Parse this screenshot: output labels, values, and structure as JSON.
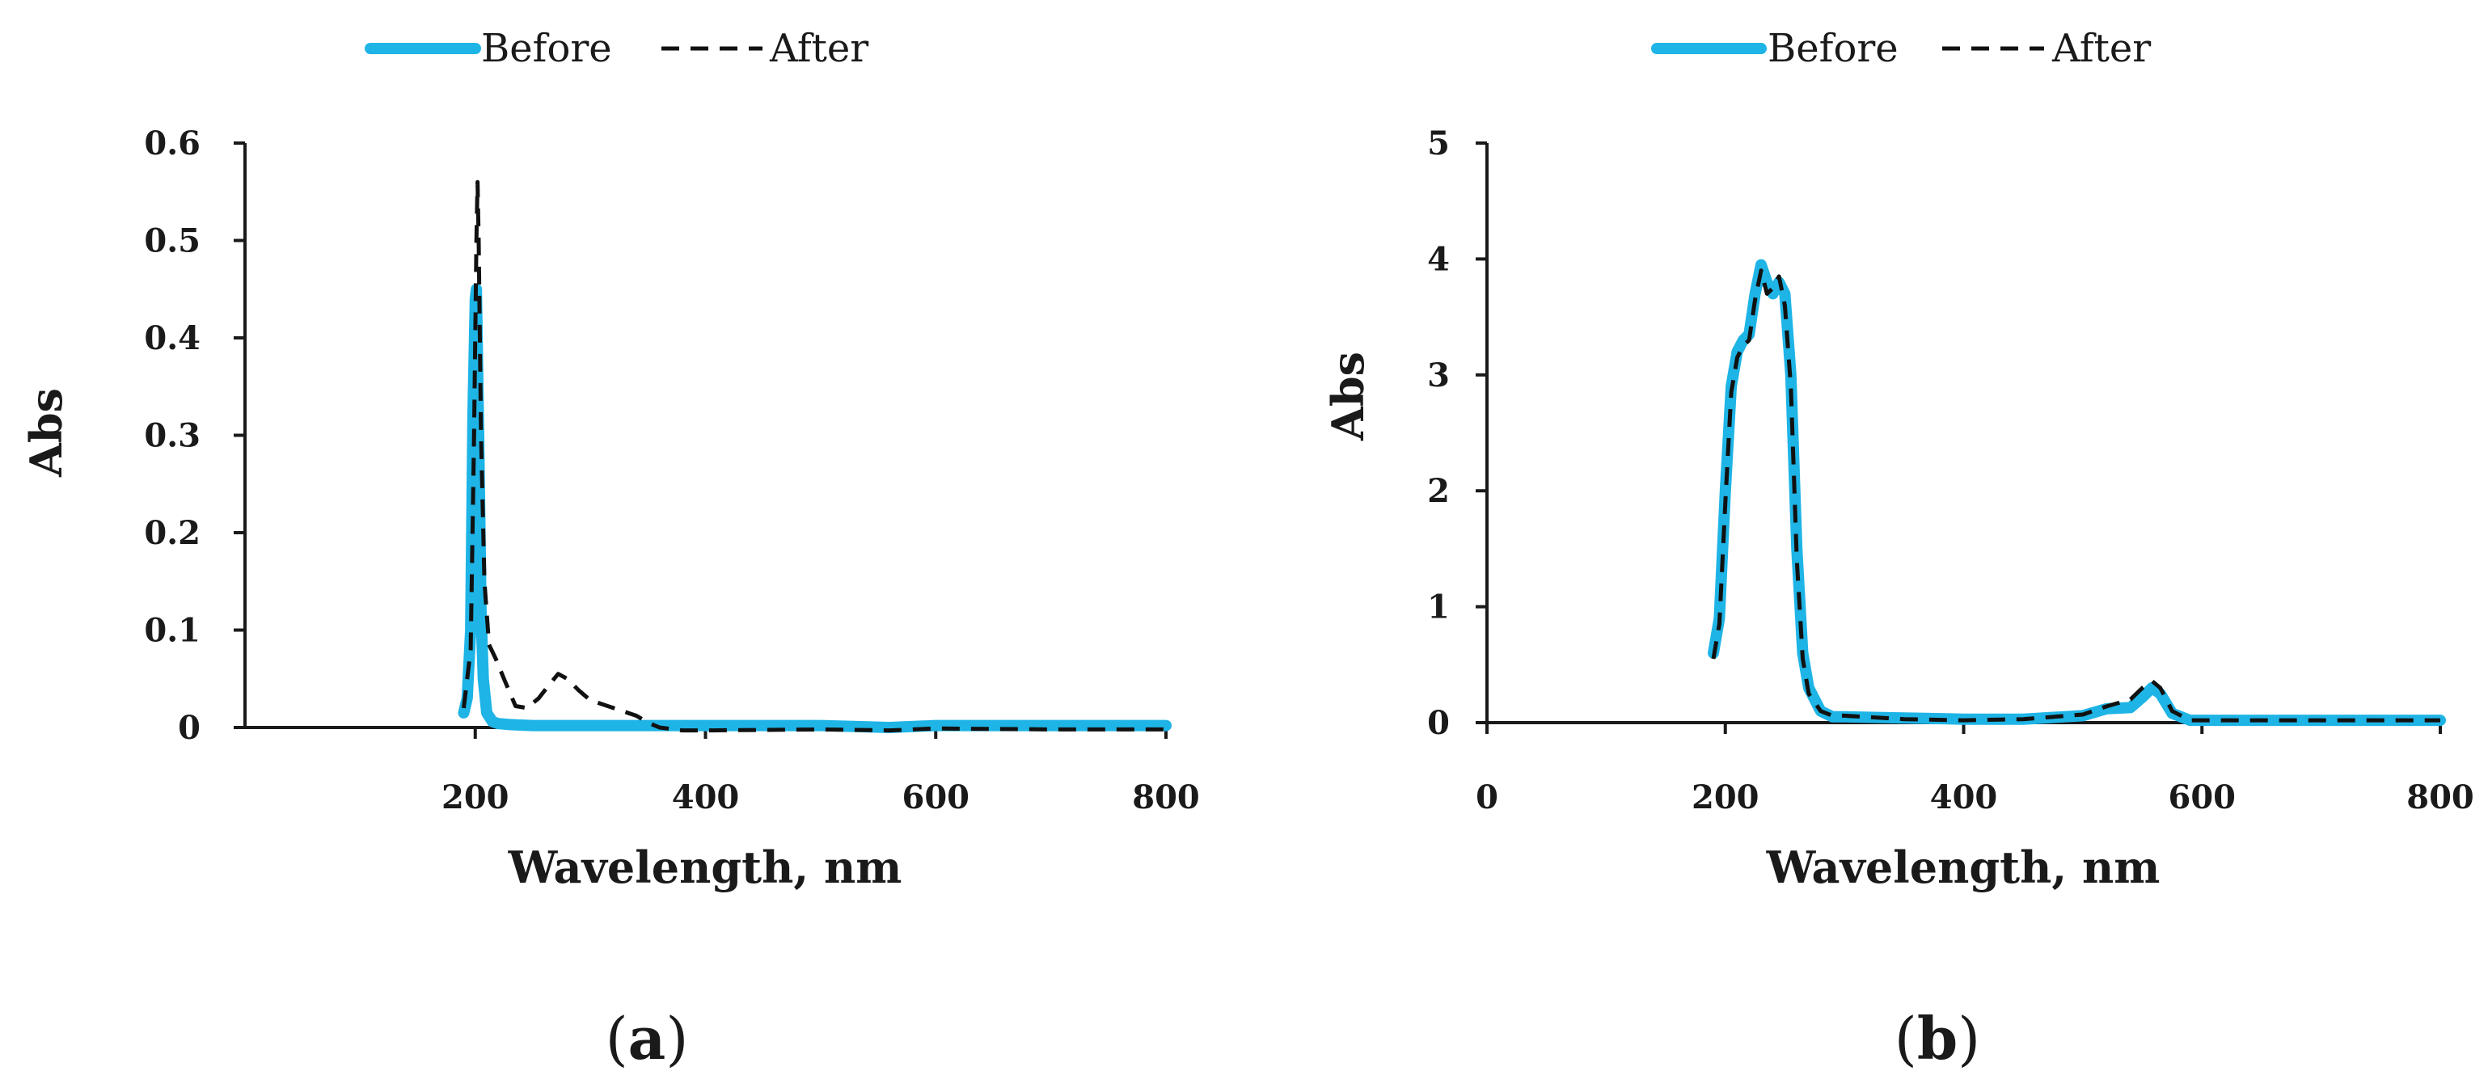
{
  "figure": {
    "panel_labels": [
      {
        "open": "(",
        "letter": "a",
        "close": ")"
      },
      {
        "open": "(",
        "letter": "b",
        "close": ")"
      }
    ]
  },
  "chart_data": [
    {
      "type": "line",
      "panel": "a",
      "title": "",
      "xlabel": "Wavelength, nm",
      "ylabel": "Abs",
      "xlim": [
        0,
        800
      ],
      "ylim": [
        0,
        0.6
      ],
      "xticks": [
        200,
        400,
        600,
        800
      ],
      "xtick_labels": [
        "200",
        "400",
        "600",
        "800"
      ],
      "yticks": [
        0,
        0.1,
        0.2,
        0.3,
        0.4,
        0.5,
        0.6
      ],
      "ytick_labels": [
        "0",
        "0.1",
        "0.2",
        "0.3",
        "0.4",
        "0.5",
        "0.6"
      ],
      "grid": false,
      "legend": "top-center",
      "series": [
        {
          "name": "Before",
          "color": "#1eb4e6",
          "style": "solid",
          "x": [
            190,
            193,
            196,
            198,
            200,
            201,
            203,
            205,
            207,
            210,
            215,
            220,
            230,
            250,
            300,
            400,
            500,
            560,
            600,
            700,
            800
          ],
          "y": [
            0.015,
            0.03,
            0.1,
            0.32,
            0.44,
            0.45,
            0.3,
            0.12,
            0.05,
            0.015,
            0.006,
            0.004,
            0.003,
            0.002,
            0.002,
            0.002,
            0.002,
            0.0,
            0.002,
            0.002,
            0.002
          ]
        },
        {
          "name": "After",
          "color": "#111111",
          "style": "dashed",
          "x": [
            190,
            196,
            199,
            201,
            202,
            203,
            205,
            208,
            212,
            218,
            225,
            235,
            245,
            255,
            265,
            272,
            280,
            290,
            300,
            320,
            340,
            350,
            360,
            380,
            400,
            500,
            560,
            600,
            700,
            800
          ],
          "y": [
            0.02,
            0.08,
            0.3,
            0.5,
            0.56,
            0.5,
            0.3,
            0.15,
            0.085,
            0.07,
            0.05,
            0.022,
            0.02,
            0.03,
            0.045,
            0.055,
            0.05,
            0.038,
            0.028,
            0.02,
            0.012,
            0.005,
            0.0,
            -0.003,
            -0.003,
            -0.002,
            -0.003,
            -0.001,
            -0.002,
            -0.002
          ]
        }
      ]
    },
    {
      "type": "line",
      "panel": "b",
      "title": "",
      "xlabel": "Wavelength, nm",
      "ylabel": "Abs",
      "xlim": [
        0,
        800
      ],
      "ylim": [
        0,
        5
      ],
      "xticks": [
        0,
        200,
        400,
        600,
        800
      ],
      "xtick_labels": [
        "0",
        "200",
        "400",
        "600",
        "800"
      ],
      "yticks": [
        0,
        1,
        2,
        3,
        4,
        5
      ],
      "ytick_labels": [
        "0",
        "1",
        "2",
        "3",
        "4",
        "5"
      ],
      "grid": false,
      "legend": "top-center",
      "series": [
        {
          "name": "Before",
          "color": "#1eb4e6",
          "style": "solid",
          "x": [
            190,
            195,
            200,
            205,
            210,
            215,
            220,
            225,
            230,
            235,
            240,
            245,
            250,
            255,
            260,
            265,
            270,
            280,
            290,
            300,
            350,
            400,
            450,
            500,
            520,
            540,
            550,
            558,
            565,
            575,
            590,
            600,
            700,
            800
          ],
          "y": [
            0.6,
            0.9,
            2.0,
            2.9,
            3.2,
            3.3,
            3.35,
            3.7,
            3.95,
            3.8,
            3.7,
            3.8,
            3.7,
            3.0,
            1.5,
            0.6,
            0.3,
            0.1,
            0.05,
            0.05,
            0.04,
            0.03,
            0.03,
            0.06,
            0.12,
            0.13,
            0.22,
            0.3,
            0.25,
            0.08,
            0.02,
            0.02,
            0.02,
            0.02
          ]
        },
        {
          "name": "After",
          "color": "#111111",
          "style": "dashed",
          "x": [
            190,
            195,
            200,
            205,
            210,
            215,
            220,
            225,
            230,
            235,
            240,
            245,
            250,
            255,
            260,
            265,
            270,
            280,
            290,
            300,
            350,
            400,
            450,
            500,
            520,
            540,
            550,
            558,
            565,
            575,
            590,
            600,
            700,
            800
          ],
          "y": [
            0.55,
            0.85,
            1.9,
            2.85,
            3.15,
            3.25,
            3.3,
            3.65,
            3.9,
            3.7,
            3.75,
            3.85,
            3.6,
            2.9,
            1.4,
            0.55,
            0.25,
            0.1,
            0.06,
            0.06,
            0.03,
            0.02,
            0.03,
            0.07,
            0.14,
            0.2,
            0.3,
            0.36,
            0.3,
            0.1,
            0.02,
            0.02,
            0.02,
            0.02
          ]
        }
      ]
    }
  ]
}
